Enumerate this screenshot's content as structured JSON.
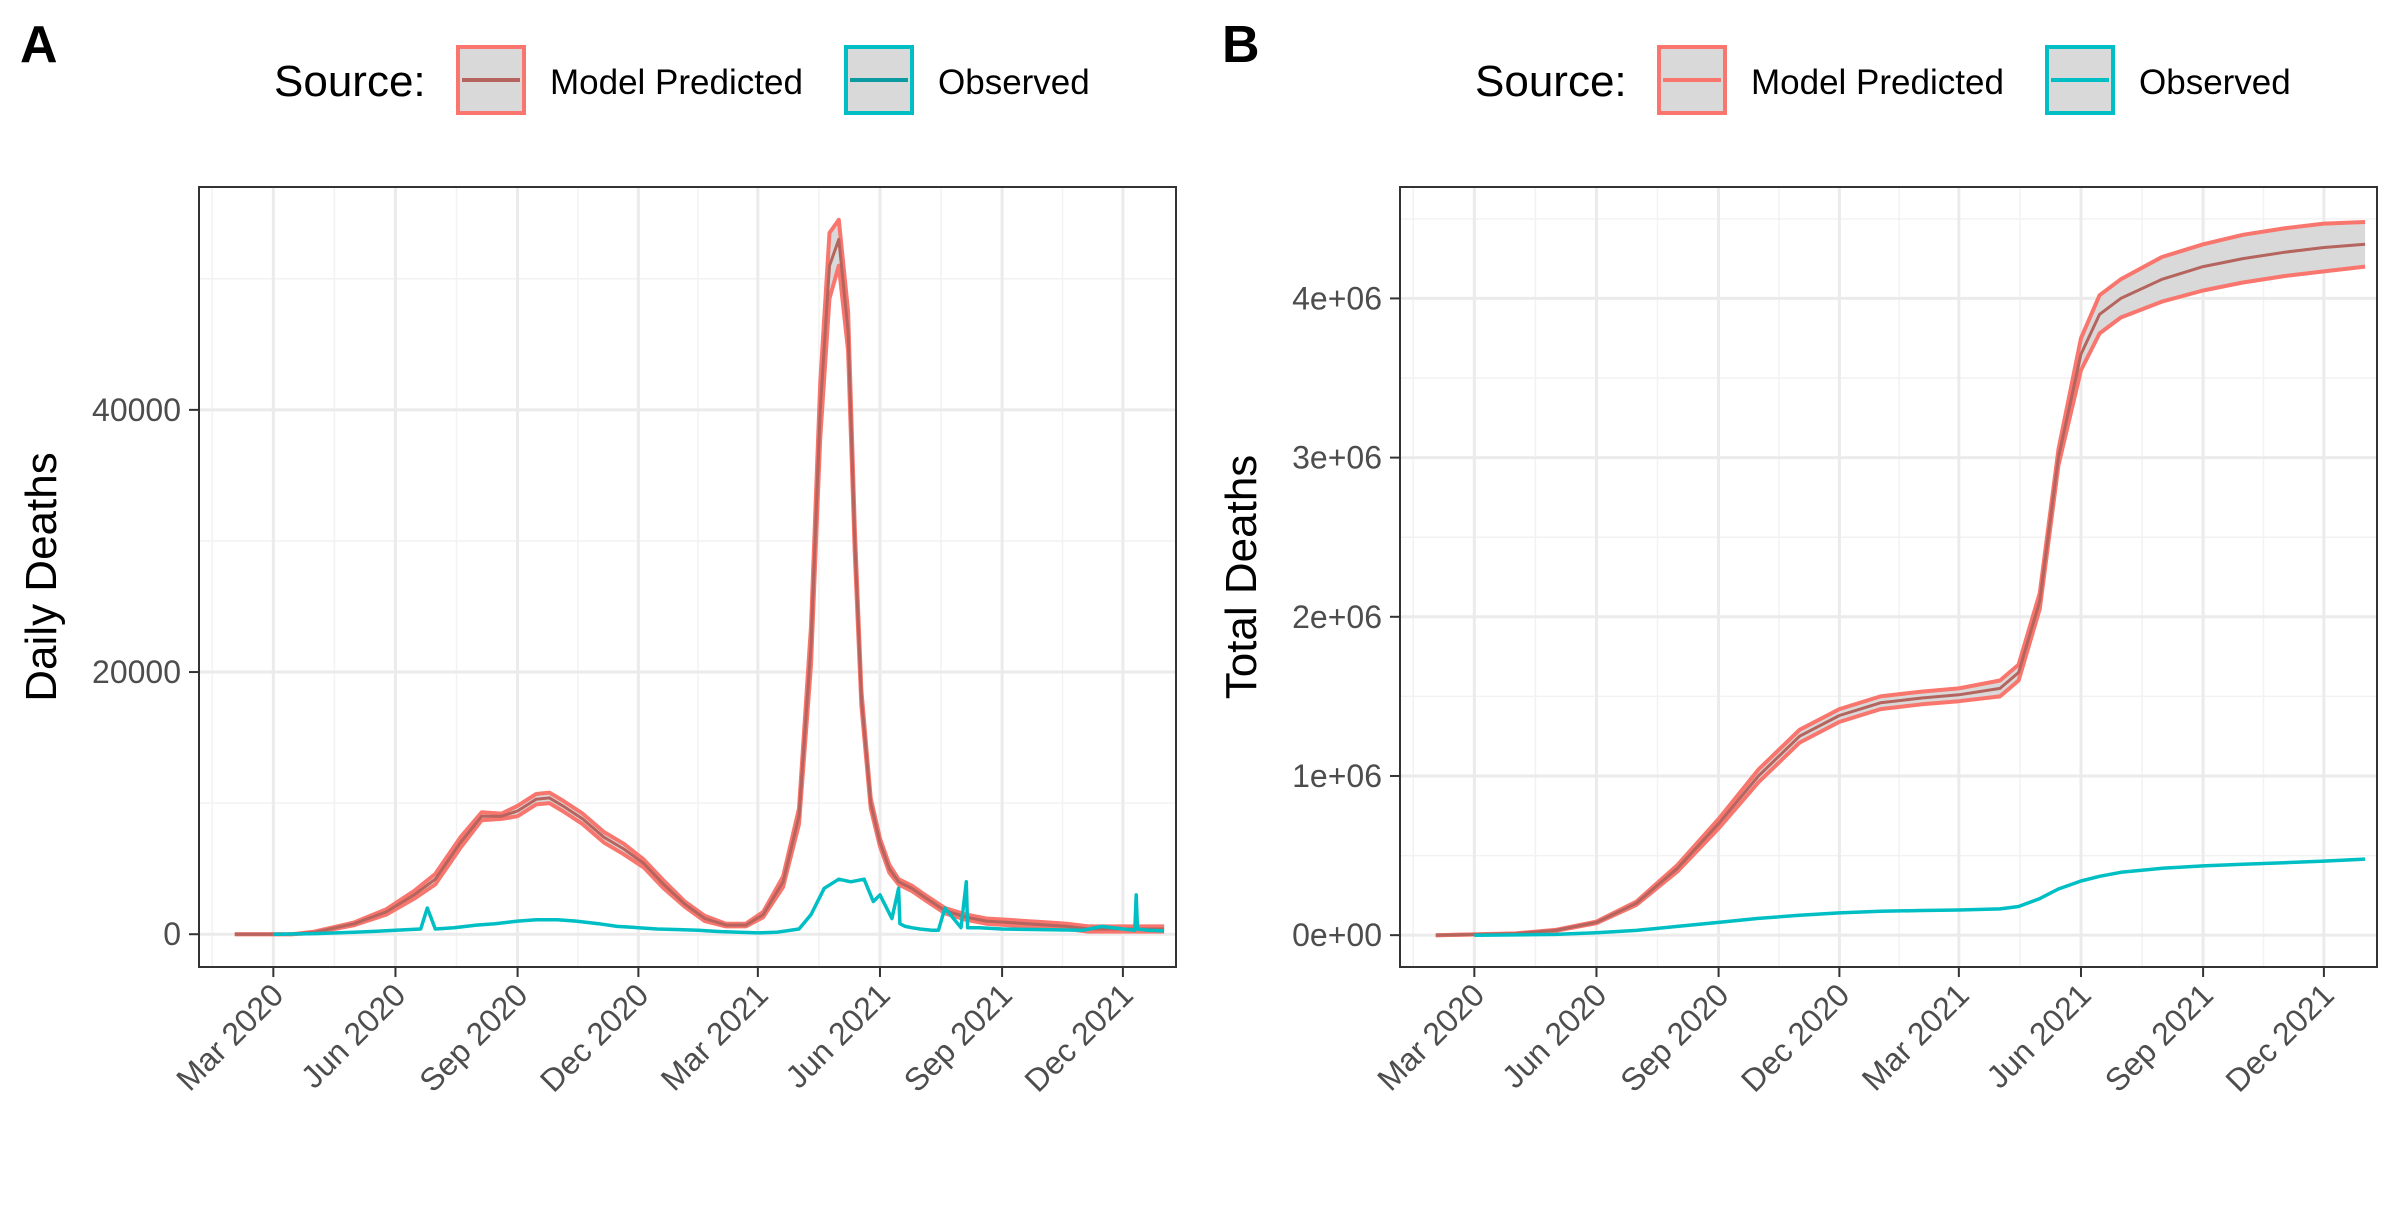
{
  "panels": [
    {
      "label": "A",
      "legend": {
        "title": "Source:",
        "items": [
          {
            "label": "Model Predicted",
            "color": "#F8766D"
          },
          {
            "label": "Observed",
            "color": "#00BFC4"
          }
        ]
      }
    },
    {
      "label": "B",
      "legend": {
        "title": "Source:",
        "items": [
          {
            "label": "Model Predicted",
            "color": "#F8766D"
          },
          {
            "label": "Observed",
            "color": "#00BFC4"
          }
        ]
      }
    }
  ],
  "chart_data": [
    {
      "type": "line",
      "ylabel": "Daily Deaths",
      "xlabel": "",
      "x_ticks": [
        "Mar 2020",
        "Jun 2020",
        "Sep 2020",
        "Dec 2020",
        "Mar 2021",
        "Jun 2021",
        "Sep 2021",
        "Dec 2021"
      ],
      "y_ticks": [
        "0",
        "20000",
        "40000"
      ],
      "y_tick_values": [
        0,
        20000,
        40000
      ],
      "ylim": [
        -2500,
        57000
      ],
      "xlim": [
        "2020-01-05",
        "2022-01-10"
      ],
      "band_color": "#D9D9D9",
      "series": [
        {
          "name": "Model Predicted",
          "color": "#F8766D",
          "x": [
            "2020-02-01",
            "2020-03-15",
            "2020-04-01",
            "2020-05-01",
            "2020-05-25",
            "2020-06-15",
            "2020-07-01",
            "2020-07-20",
            "2020-08-05",
            "2020-08-20",
            "2020-09-01",
            "2020-09-15",
            "2020-09-25",
            "2020-10-05",
            "2020-10-20",
            "2020-11-05",
            "2020-11-20",
            "2020-12-05",
            "2020-12-20",
            "2021-01-05",
            "2021-01-20",
            "2021-02-05",
            "2021-02-20",
            "2021-03-05",
            "2021-03-20",
            "2021-04-01",
            "2021-04-10",
            "2021-04-17",
            "2021-04-24",
            "2021-05-01",
            "2021-05-08",
            "2021-05-13",
            "2021-05-18",
            "2021-05-25",
            "2021-06-01",
            "2021-06-08",
            "2021-06-15",
            "2021-06-25",
            "2021-07-05",
            "2021-07-20",
            "2021-08-05",
            "2021-08-20",
            "2021-09-05",
            "2021-09-20",
            "2021-10-05",
            "2021-10-20",
            "2021-11-05",
            "2021-11-20",
            "2021-12-05",
            "2021-12-20",
            "2022-01-01"
          ],
          "values": [
            0,
            0,
            150,
            800,
            1700,
            3000,
            4200,
            7000,
            9000,
            9000,
            9400,
            10300,
            10400,
            9800,
            8800,
            7400,
            6500,
            5400,
            3800,
            2300,
            1200,
            700,
            700,
            1500,
            4000,
            9000,
            22000,
            40000,
            51000,
            53000,
            46000,
            30000,
            18000,
            10000,
            7000,
            5000,
            4000,
            3500,
            2800,
            1800,
            1300,
            1000,
            900,
            800,
            700,
            600,
            400,
            400,
            400,
            400,
            400
          ],
          "lower": [
            0,
            0,
            100,
            700,
            1500,
            2700,
            3800,
            6600,
            8700,
            8800,
            9000,
            9900,
            10000,
            9400,
            8400,
            7000,
            6100,
            5100,
            3500,
            2100,
            1000,
            600,
            600,
            1300,
            3600,
            8400,
            20500,
            37800,
            48500,
            51000,
            44500,
            29000,
            17400,
            9600,
            6700,
            4700,
            3800,
            3300,
            2600,
            1600,
            1100,
            800,
            700,
            600,
            500,
            400,
            200,
            200,
            200,
            200,
            200
          ],
          "upper": [
            0,
            0,
            200,
            900,
            1900,
            3300,
            4600,
            7400,
            9300,
            9200,
            9800,
            10700,
            10800,
            10200,
            9200,
            7800,
            6900,
            5700,
            4100,
            2500,
            1400,
            800,
            800,
            1700,
            4400,
            9600,
            23500,
            42000,
            53500,
            54500,
            47500,
            31000,
            18600,
            10400,
            7300,
            5300,
            4200,
            3700,
            3000,
            2000,
            1500,
            1200,
            1100,
            1000,
            900,
            800,
            600,
            600,
            600,
            600,
            600
          ]
        },
        {
          "name": "Observed",
          "color": "#00BFC4",
          "x": [
            "2020-03-01",
            "2020-04-01",
            "2020-05-01",
            "2020-06-01",
            "2020-06-20",
            "2020-06-25",
            "2020-07-01",
            "2020-07-15",
            "2020-08-01",
            "2020-08-15",
            "2020-09-01",
            "2020-09-15",
            "2020-10-01",
            "2020-10-15",
            "2020-11-01",
            "2020-11-15",
            "2020-12-01",
            "2020-12-15",
            "2021-01-01",
            "2021-01-15",
            "2021-02-01",
            "2021-02-15",
            "2021-03-01",
            "2021-03-15",
            "2021-04-01",
            "2021-04-10",
            "2021-04-20",
            "2021-05-01",
            "2021-05-10",
            "2021-05-20",
            "2021-05-27",
            "2021-06-01",
            "2021-06-10",
            "2021-06-15",
            "2021-06-16",
            "2021-06-20",
            "2021-06-25",
            "2021-07-01",
            "2021-07-10",
            "2021-07-15",
            "2021-07-20",
            "2021-08-01",
            "2021-08-05",
            "2021-08-06",
            "2021-08-10",
            "2021-08-15",
            "2021-09-01",
            "2021-10-01",
            "2021-11-01",
            "2021-11-15",
            "2021-12-01",
            "2021-12-10",
            "2021-12-11",
            "2021-12-12",
            "2021-12-20",
            "2022-01-01"
          ],
          "values": [
            0,
            50,
            150,
            300,
            400,
            2000,
            400,
            500,
            700,
            800,
            1000,
            1100,
            1100,
            1000,
            800,
            600,
            500,
            400,
            350,
            300,
            200,
            150,
            100,
            150,
            400,
            1500,
            3500,
            4200,
            4000,
            4200,
            2500,
            3000,
            1200,
            3500,
            800,
            600,
            500,
            400,
            300,
            300,
            2000,
            500,
            4000,
            500,
            500,
            500,
            400,
            350,
            300,
            600,
            400,
            300,
            3000,
            400,
            300,
            250
          ]
        }
      ]
    },
    {
      "type": "line",
      "ylabel": "Total Deaths",
      "xlabel": "",
      "x_ticks": [
        "Mar 2020",
        "Jun 2020",
        "Sep 2020",
        "Dec 2020",
        "Mar 2021",
        "Jun 2021",
        "Sep 2021",
        "Dec 2021"
      ],
      "y_ticks": [
        "0e+00",
        "1e+06",
        "2e+06",
        "3e+06",
        "4e+06"
      ],
      "y_tick_values": [
        0,
        1000000,
        2000000,
        3000000,
        4000000
      ],
      "ylim": [
        -200000,
        4700000
      ],
      "xlim": [
        "2020-01-05",
        "2022-01-10"
      ],
      "band_color": "#D9D9D9",
      "series": [
        {
          "name": "Model Predicted",
          "color": "#F8766D",
          "x": [
            "2020-02-01",
            "2020-04-01",
            "2020-05-01",
            "2020-06-01",
            "2020-07-01",
            "2020-08-01",
            "2020-09-01",
            "2020-10-01",
            "2020-11-01",
            "2020-12-01",
            "2021-01-01",
            "2021-02-01",
            "2021-03-01",
            "2021-04-01",
            "2021-04-15",
            "2021-05-01",
            "2021-05-15",
            "2021-06-01",
            "2021-06-15",
            "2021-07-01",
            "2021-08-01",
            "2021-09-01",
            "2021-10-01",
            "2021-11-01",
            "2021-12-01",
            "2022-01-01"
          ],
          "values": [
            0,
            10000,
            30000,
            80000,
            200000,
            420000,
            700000,
            1000000,
            1250000,
            1380000,
            1460000,
            1490000,
            1510000,
            1550000,
            1650000,
            2100000,
            3000000,
            3650000,
            3900000,
            4000000,
            4120000,
            4200000,
            4250000,
            4290000,
            4320000,
            4340000
          ],
          "lower": [
            0,
            9000,
            27000,
            75000,
            190000,
            400000,
            670000,
            960000,
            1210000,
            1340000,
            1420000,
            1450000,
            1470000,
            1500000,
            1600000,
            2050000,
            2950000,
            3550000,
            3780000,
            3880000,
            3980000,
            4050000,
            4100000,
            4140000,
            4170000,
            4200000
          ],
          "upper": [
            0,
            11000,
            33000,
            85000,
            210000,
            440000,
            730000,
            1040000,
            1290000,
            1420000,
            1500000,
            1530000,
            1550000,
            1600000,
            1700000,
            2150000,
            3050000,
            3750000,
            4020000,
            4120000,
            4260000,
            4340000,
            4400000,
            4440000,
            4470000,
            4480000
          ]
        },
        {
          "name": "Observed",
          "color": "#00BFC4",
          "x": [
            "2020-03-01",
            "2020-04-01",
            "2020-05-01",
            "2020-06-01",
            "2020-07-01",
            "2020-08-01",
            "2020-09-01",
            "2020-10-01",
            "2020-11-01",
            "2020-12-01",
            "2021-01-01",
            "2021-02-01",
            "2021-03-01",
            "2021-04-01",
            "2021-04-15",
            "2021-05-01",
            "2021-05-15",
            "2021-06-01",
            "2021-06-15",
            "2021-07-01",
            "2021-08-01",
            "2021-09-01",
            "2021-10-01",
            "2021-11-01",
            "2021-12-01",
            "2022-01-01"
          ],
          "values": [
            0,
            1500,
            5000,
            15000,
            30000,
            55000,
            80000,
            105000,
            125000,
            140000,
            150000,
            155000,
            158000,
            165000,
            180000,
            230000,
            290000,
            340000,
            370000,
            395000,
            420000,
            435000,
            445000,
            455000,
            465000,
            478000
          ]
        }
      ]
    }
  ]
}
